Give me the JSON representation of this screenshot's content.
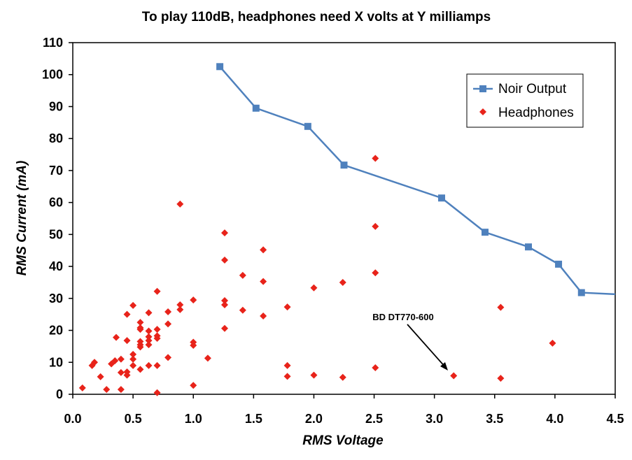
{
  "chart_data": {
    "type": "scatter",
    "title": "To play 110dB, headphones need X volts at Y milliamps",
    "xlabel": "RMS Voltage",
    "ylabel": "RMS Current (mA)",
    "xlim": [
      0,
      4.5
    ],
    "ylim": [
      0,
      110
    ],
    "x_ticks": [
      "0.0",
      "0.5",
      "1.0",
      "1.5",
      "2.0",
      "2.5",
      "3.0",
      "3.5",
      "4.0",
      "4.5"
    ],
    "y_ticks": [
      "0",
      "10",
      "20",
      "30",
      "40",
      "50",
      "60",
      "70",
      "80",
      "90",
      "100",
      "110"
    ],
    "grid": false,
    "legend_position": "top-right",
    "colors": {
      "noir": "#4f81bd",
      "headphones": "#e8231a",
      "axes": "#000000"
    },
    "series": [
      {
        "name": "Noir Output",
        "style": "line-square",
        "points": [
          [
            1.22,
            102.5
          ],
          [
            1.52,
            89.5
          ],
          [
            1.95,
            83.8
          ],
          [
            2.25,
            71.7
          ],
          [
            3.06,
            61.4
          ],
          [
            3.42,
            50.7
          ],
          [
            3.78,
            46.1
          ],
          [
            4.03,
            40.7
          ],
          [
            4.22,
            31.8
          ],
          [
            4.5,
            31.3
          ]
        ]
      },
      {
        "name": "Headphones",
        "style": "scatter-diamond",
        "points": [
          [
            0.08,
            2.0
          ],
          [
            0.16,
            9.0
          ],
          [
            0.18,
            10.0
          ],
          [
            0.23,
            5.5
          ],
          [
            0.28,
            1.5
          ],
          [
            0.32,
            9.5
          ],
          [
            0.35,
            10.5
          ],
          [
            0.36,
            17.8
          ],
          [
            0.4,
            11.0
          ],
          [
            0.4,
            6.8
          ],
          [
            0.4,
            1.5
          ],
          [
            0.45,
            16.8
          ],
          [
            0.45,
            25.0
          ],
          [
            0.45,
            6.0
          ],
          [
            0.45,
            7.0
          ],
          [
            0.5,
            27.8
          ],
          [
            0.5,
            12.5
          ],
          [
            0.5,
            11.0
          ],
          [
            0.5,
            9.0
          ],
          [
            0.56,
            22.5
          ],
          [
            0.56,
            20.8
          ],
          [
            0.56,
            20.3
          ],
          [
            0.56,
            16.5
          ],
          [
            0.56,
            15.5
          ],
          [
            0.56,
            14.8
          ],
          [
            0.56,
            7.8
          ],
          [
            0.63,
            25.5
          ],
          [
            0.63,
            19.8
          ],
          [
            0.63,
            18.0
          ],
          [
            0.63,
            16.8
          ],
          [
            0.63,
            15.5
          ],
          [
            0.63,
            9.0
          ],
          [
            0.7,
            32.2
          ],
          [
            0.7,
            20.3
          ],
          [
            0.7,
            18.3
          ],
          [
            0.7,
            17.5
          ],
          [
            0.7,
            9.0
          ],
          [
            0.7,
            0.5
          ],
          [
            0.79,
            25.8
          ],
          [
            0.79,
            22.0
          ],
          [
            0.79,
            11.5
          ],
          [
            0.89,
            59.5
          ],
          [
            0.89,
            28.0
          ],
          [
            0.89,
            26.5
          ],
          [
            1.0,
            29.5
          ],
          [
            1.0,
            16.3
          ],
          [
            1.0,
            15.3
          ],
          [
            1.0,
            2.8
          ],
          [
            1.12,
            11.3
          ],
          [
            1.26,
            50.5
          ],
          [
            1.26,
            42.0
          ],
          [
            1.26,
            29.3
          ],
          [
            1.26,
            28.0
          ],
          [
            1.26,
            20.6
          ],
          [
            1.41,
            37.2
          ],
          [
            1.41,
            26.3
          ],
          [
            1.58,
            45.2
          ],
          [
            1.58,
            35.3
          ],
          [
            1.58,
            24.5
          ],
          [
            1.78,
            27.3
          ],
          [
            1.78,
            9.0
          ],
          [
            1.78,
            5.6
          ],
          [
            2.0,
            33.3
          ],
          [
            2.0,
            6.0
          ],
          [
            2.24,
            35.0
          ],
          [
            2.24,
            5.3
          ],
          [
            2.51,
            73.8
          ],
          [
            2.51,
            52.5
          ],
          [
            2.51,
            38.0
          ],
          [
            2.51,
            8.3
          ],
          [
            3.16,
            5.8
          ],
          [
            3.55,
            27.2
          ],
          [
            3.55,
            5.0
          ],
          [
            3.98,
            16.0
          ]
        ]
      }
    ],
    "annotations": [
      {
        "text": "BD DT770-600",
        "x": 3.16,
        "y": 5.8
      }
    ]
  }
}
